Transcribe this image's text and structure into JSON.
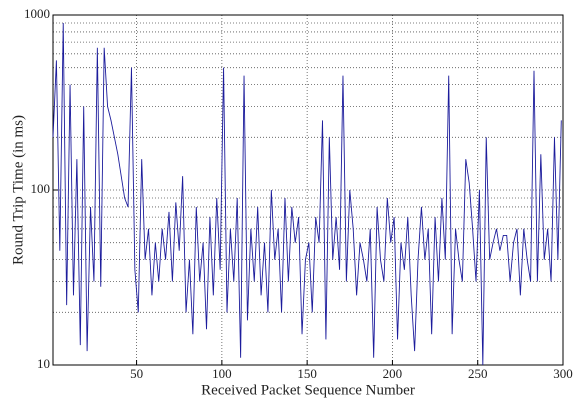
{
  "chart_data": {
    "type": "line",
    "x_label": "Received Packet Sequence Number",
    "y_label": "Round Trip Time (in ms)",
    "log_y": true,
    "grid": true,
    "color": "#1c1c9c",
    "xlim": [
      1,
      300
    ],
    "xticks": [
      50,
      100,
      150,
      200,
      250,
      300
    ],
    "ylim": [
      10,
      1000
    ],
    "yticks": [
      10,
      100,
      1000
    ],
    "yminorticks": [
      20,
      30,
      40,
      50,
      60,
      70,
      80,
      90,
      200,
      300,
      400,
      500,
      600,
      700,
      800,
      900
    ],
    "x": [
      1,
      3,
      5,
      7,
      9,
      11,
      13,
      15,
      17,
      19,
      21,
      23,
      25,
      27,
      29,
      31,
      33,
      35,
      37,
      39,
      41,
      43,
      45,
      47,
      49,
      51,
      53,
      55,
      57,
      59,
      61,
      63,
      65,
      67,
      69,
      71,
      73,
      75,
      77,
      79,
      81,
      83,
      85,
      87,
      89,
      91,
      93,
      95,
      97,
      99,
      101,
      103,
      105,
      107,
      109,
      111,
      113,
      115,
      117,
      119,
      121,
      123,
      125,
      127,
      129,
      131,
      133,
      135,
      137,
      139,
      141,
      143,
      145,
      147,
      149,
      151,
      153,
      155,
      157,
      159,
      161,
      163,
      165,
      167,
      169,
      171,
      173,
      175,
      177,
      179,
      181,
      183,
      185,
      187,
      189,
      191,
      193,
      195,
      197,
      199,
      201,
      203,
      205,
      207,
      209,
      211,
      213,
      215,
      217,
      219,
      221,
      223,
      225,
      227,
      229,
      231,
      233,
      235,
      237,
      239,
      241,
      243,
      245,
      247,
      249,
      251,
      253,
      255,
      257,
      259,
      261,
      263,
      265,
      267,
      269,
      271,
      273,
      275,
      277,
      279,
      281,
      283,
      285,
      287,
      289,
      291,
      293,
      295,
      297,
      299
    ],
    "values": [
      200,
      550,
      45,
      900,
      22,
      400,
      25,
      150,
      13,
      300,
      12,
      80,
      30,
      650,
      28,
      650,
      300,
      250,
      200,
      160,
      120,
      90,
      80,
      500,
      35,
      20,
      150,
      40,
      60,
      25,
      50,
      30,
      60,
      40,
      75,
      30,
      85,
      45,
      120,
      20,
      40,
      15,
      80,
      30,
      50,
      16,
      70,
      25,
      90,
      35,
      500,
      20,
      60,
      30,
      90,
      11,
      450,
      18,
      60,
      30,
      80,
      25,
      50,
      20,
      100,
      40,
      60,
      20,
      90,
      30,
      80,
      50,
      70,
      15,
      40,
      50,
      20,
      70,
      50,
      250,
      14,
      200,
      40,
      70,
      35,
      450,
      30,
      100,
      60,
      25,
      50,
      40,
      30,
      60,
      11,
      80,
      40,
      30,
      90,
      50,
      70,
      14,
      50,
      35,
      70,
      25,
      12,
      40,
      80,
      40,
      60,
      15,
      70,
      30,
      90,
      40,
      450,
      15,
      60,
      40,
      30,
      150,
      110,
      60,
      30,
      100,
      10,
      200,
      40,
      50,
      60,
      45,
      55,
      55,
      30,
      50,
      60,
      25,
      60,
      40,
      30,
      480,
      30,
      160,
      40,
      60,
      30,
      200,
      40,
      250
    ]
  }
}
